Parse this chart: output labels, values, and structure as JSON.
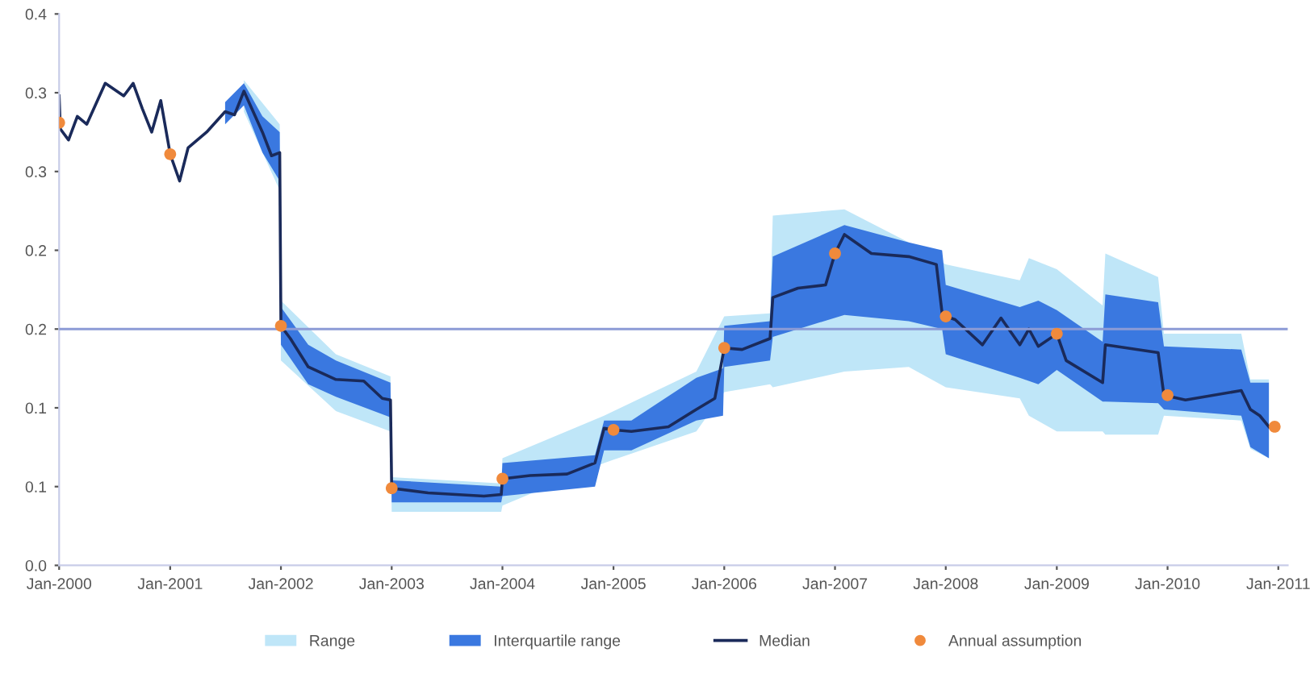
{
  "chart_data": {
    "type": "line",
    "ylim": [
      0,
      0.35
    ],
    "yticks": [
      {
        "value": 0,
        "label": "0.0"
      },
      {
        "value": 0.05,
        "label": "0.1"
      },
      {
        "value": 0.1,
        "label": "0.1"
      },
      {
        "value": 0.15,
        "label": "0.2"
      },
      {
        "value": 0.2,
        "label": "0.2"
      },
      {
        "value": 0.25,
        "label": "0.3"
      },
      {
        "value": 0.3,
        "label": "0.3"
      },
      {
        "value": 0.35,
        "label": "0.4"
      }
    ],
    "xlim": [
      "2000-01-01",
      "2011-02-01"
    ],
    "xticks": [
      {
        "value": "2000-01-01",
        "label": "Jan-2000"
      },
      {
        "value": "2001-01-01",
        "label": "Jan-2001"
      },
      {
        "value": "2002-01-01",
        "label": "Jan-2002"
      },
      {
        "value": "2003-01-01",
        "label": "Jan-2003"
      },
      {
        "value": "2004-01-01",
        "label": "Jan-2004"
      },
      {
        "value": "2005-01-01",
        "label": "Jan-2005"
      },
      {
        "value": "2006-01-01",
        "label": "Jan-2006"
      },
      {
        "value": "2007-01-01",
        "label": "Jan-2007"
      },
      {
        "value": "2008-01-01",
        "label": "Jan-2008"
      },
      {
        "value": "2009-01-01",
        "label": "Jan-2009"
      },
      {
        "value": "2010-01-01",
        "label": "Jan-2010"
      },
      {
        "value": "2011-01-01",
        "label": "Jan-2011"
      }
    ],
    "grid": false,
    "legend": "bottom",
    "ref_lines": [
      {
        "axis": "y",
        "value": 0.15,
        "color": "#8c9bd6"
      }
    ],
    "series": [
      {
        "name": "Range",
        "type": "area",
        "color": "#bfe6f8",
        "x": [
          "2001-09-01",
          "2001-12-28",
          "2002-01-01",
          "2002-07-01",
          "2002-12-28",
          "2003-01-01",
          "2003-12-28",
          "2004-01-01",
          "2004-12-01",
          "2005-10-01",
          "2006-01-01",
          "2006-06-01",
          "2006-06-10",
          "2007-02-01",
          "2007-09-01",
          "2008-01-01",
          "2008-09-01",
          "2008-10-01",
          "2009-01-01",
          "2009-06-01",
          "2009-06-10",
          "2009-12-01",
          "2009-12-20",
          "2010-09-01",
          "2010-10-01",
          "2010-12-01"
        ],
        "values": [
          null,
          null,
          null,
          null,
          null,
          null,
          null,
          null,
          null,
          null,
          null,
          null,
          null,
          null,
          null,
          null,
          null,
          null,
          null,
          null,
          null,
          null,
          null,
          null,
          null,
          null
        ],
        "upper": [
          0.308,
          0.28,
          0.168,
          0.134,
          0.12,
          0.056,
          0.052,
          0.068,
          0.095,
          0.123,
          0.158,
          0.16,
          0.222,
          0.226,
          0.205,
          0.191,
          0.181,
          0.195,
          0.188,
          0.165,
          0.198,
          0.183,
          0.147,
          0.147,
          0.118,
          0.118
        ],
        "lower": [
          0.288,
          0.238,
          0.13,
          0.098,
          0.085,
          0.034,
          0.034,
          0.038,
          0.065,
          0.085,
          0.11,
          0.115,
          0.113,
          0.123,
          0.126,
          0.113,
          0.106,
          0.095,
          0.085,
          0.085,
          0.083,
          0.083,
          0.095,
          0.092,
          0.074,
          0.068
        ]
      },
      {
        "name": "Interquartile range",
        "type": "area",
        "color": "#3a78e0",
        "x": [
          "2001-07-01",
          "2001-09-01",
          "2001-11-01",
          "2001-12-28",
          "2002-01-01",
          "2002-04-01",
          "2002-07-01",
          "2002-12-28",
          "2003-01-01",
          "2003-12-28",
          "2004-01-01",
          "2004-11-01",
          "2004-12-01",
          "2005-03-01",
          "2005-10-01",
          "2005-12-28",
          "2006-01-01",
          "2006-06-01",
          "2006-06-10",
          "2007-02-01",
          "2007-09-01",
          "2007-12-20",
          "2008-01-01",
          "2008-09-01",
          "2008-11-01",
          "2009-01-01",
          "2009-06-01",
          "2009-06-10",
          "2009-12-01",
          "2009-12-20",
          "2010-09-01",
          "2010-10-01",
          "2010-12-01"
        ],
        "values": [
          null,
          null,
          null,
          null,
          null,
          null,
          null,
          null,
          null,
          null,
          null,
          null,
          null,
          null,
          null,
          null,
          null,
          null,
          null,
          null,
          null,
          null,
          null,
          null,
          null,
          null,
          null,
          null,
          null,
          null,
          null,
          null,
          null
        ],
        "upper": [
          0.294,
          0.306,
          0.285,
          0.275,
          0.164,
          0.14,
          0.13,
          0.116,
          0.054,
          0.05,
          0.065,
          0.07,
          0.092,
          0.092,
          0.119,
          0.125,
          0.152,
          0.155,
          0.196,
          0.216,
          0.205,
          0.2,
          0.178,
          0.164,
          0.168,
          0.162,
          0.142,
          0.172,
          0.167,
          0.139,
          0.137,
          0.116,
          0.116
        ],
        "lower": [
          0.28,
          0.292,
          0.262,
          0.244,
          0.14,
          0.115,
          0.107,
          0.094,
          0.04,
          0.04,
          0.044,
          0.05,
          0.073,
          0.073,
          0.092,
          0.095,
          0.126,
          0.13,
          0.145,
          0.159,
          0.155,
          0.15,
          0.134,
          0.119,
          0.115,
          0.124,
          0.104,
          0.104,
          0.103,
          0.099,
          0.095,
          0.075,
          0.068
        ]
      },
      {
        "name": "Median",
        "type": "line",
        "color": "#1a2a5a",
        "x": [
          "2000-01-01",
          "2000-01-05",
          "2000-02-01",
          "2000-03-01",
          "2000-04-01",
          "2000-06-01",
          "2000-08-01",
          "2000-09-01",
          "2000-10-01",
          "2000-11-01",
          "2000-12-01",
          "2001-01-01",
          "2001-02-01",
          "2001-03-01",
          "2001-05-01",
          "2001-07-01",
          "2001-08-01",
          "2001-09-01",
          "2001-11-01",
          "2001-12-01",
          "2001-12-28",
          "2002-01-01",
          "2002-02-01",
          "2002-04-01",
          "2002-07-01",
          "2002-10-01",
          "2002-12-01",
          "2002-12-28",
          "2003-01-01",
          "2003-05-01",
          "2003-11-01",
          "2003-12-28",
          "2004-01-01",
          "2004-04-01",
          "2004-08-01",
          "2004-11-01",
          "2004-12-01",
          "2005-01-01",
          "2005-03-01",
          "2005-07-01",
          "2005-10-01",
          "2005-12-01",
          "2006-01-01",
          "2006-03-01",
          "2006-06-01",
          "2006-06-10",
          "2006-09-01",
          "2006-12-01",
          "2007-01-01",
          "2007-02-01",
          "2007-05-01",
          "2007-09-01",
          "2007-12-01",
          "2007-12-20",
          "2008-01-01",
          "2008-02-01",
          "2008-05-01",
          "2008-07-01",
          "2008-09-01",
          "2008-10-01",
          "2008-11-01",
          "2009-01-01",
          "2009-02-01",
          "2009-06-01",
          "2009-06-10",
          "2009-12-01",
          "2009-12-20",
          "2010-03-01",
          "2010-09-01",
          "2010-10-01",
          "2010-11-01",
          "2010-12-01"
        ],
        "values": [
          0.298,
          0.277,
          0.27,
          0.285,
          0.28,
          0.306,
          0.298,
          0.306,
          0.29,
          0.275,
          0.295,
          0.261,
          0.244,
          0.265,
          0.275,
          0.288,
          0.286,
          0.301,
          0.275,
          0.26,
          0.262,
          0.152,
          0.144,
          0.126,
          0.118,
          0.117,
          0.106,
          0.105,
          0.049,
          0.046,
          0.044,
          0.045,
          0.055,
          0.057,
          0.058,
          0.065,
          0.087,
          0.086,
          0.085,
          0.088,
          0.099,
          0.106,
          0.138,
          0.137,
          0.144,
          0.17,
          0.176,
          0.178,
          0.198,
          0.21,
          0.198,
          0.196,
          0.191,
          0.16,
          0.158,
          0.156,
          0.14,
          0.157,
          0.14,
          0.15,
          0.139,
          0.147,
          0.13,
          0.116,
          0.14,
          0.135,
          0.108,
          0.105,
          0.111,
          0.099,
          0.095,
          0.088
        ]
      },
      {
        "name": "Annual assumption",
        "type": "scatter",
        "color": "#f08a3c",
        "marker": "circle",
        "x": [
          "2000-01-01",
          "2001-01-01",
          "2002-01-01",
          "2003-01-01",
          "2004-01-01",
          "2005-01-01",
          "2006-01-01",
          "2007-01-01",
          "2008-01-01",
          "2009-01-01",
          "2010-01-01",
          "2010-12-20"
        ],
        "values": [
          0.281,
          0.261,
          0.152,
          0.049,
          0.055,
          0.086,
          0.138,
          0.198,
          0.158,
          0.147,
          0.108,
          0.088
        ]
      }
    ]
  }
}
